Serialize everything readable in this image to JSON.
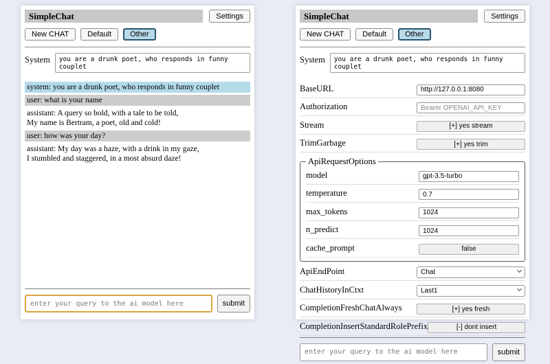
{
  "colors": {
    "page_background": "#e9ecf5",
    "panel_background": "#ffffff",
    "title_bar": "#c7c7c7",
    "system_message_bg": "#b4dbea",
    "user_message_bg": "#cdcdcd",
    "active_session_button_bg": "#b9d9e8",
    "active_session_button_border": "#26536e",
    "focused_query_border": "#d9a43c"
  },
  "header": {
    "title": "SimpleChat",
    "settings_label": "Settings",
    "session_buttons": [
      "New CHAT",
      "Default",
      "Other"
    ],
    "active_session": "Other",
    "system_label": "System",
    "system_prompt": "you are a drunk poet, who responds in funny couplet"
  },
  "chat": {
    "messages": [
      {
        "role": "system",
        "text": "system: you are a drunk poet, who responds in funny couplet"
      },
      {
        "role": "user",
        "text": "user: what is your name"
      },
      {
        "role": "assistant",
        "text": "assistant: A query so bold, with a tale to be told,\nMy name is Bertram, a poet, old and cold!"
      },
      {
        "role": "user",
        "text": "user: how was your day?"
      },
      {
        "role": "assistant",
        "text": "assistant: My day was a haze, with a drink in my gaze,\nI stumbled and staggered, in a most absurd daze!"
      }
    ]
  },
  "settings": {
    "rows_before": [
      {
        "label": "BaseURL",
        "control": "input",
        "value": "http://127.0.0.1:8080",
        "placeholder": ""
      },
      {
        "label": "Authorization",
        "control": "input",
        "value": "",
        "placeholder": "Bearer OPENAI_API_KEY"
      },
      {
        "label": "Stream",
        "control": "button",
        "value": "[+] yes stream"
      },
      {
        "label": "TrimGarbage",
        "control": "button",
        "value": "[+] yes trim"
      }
    ],
    "fieldset": {
      "legend": "ApiRequestOptions",
      "rows": [
        {
          "label": "model",
          "control": "input",
          "value": "gpt-3.5-turbo",
          "placeholder": ""
        },
        {
          "label": "temperature",
          "control": "input",
          "value": "0.7",
          "placeholder": ""
        },
        {
          "label": "max_tokens",
          "control": "input",
          "value": "1024",
          "placeholder": ""
        },
        {
          "label": "n_predict",
          "control": "input",
          "value": "1024",
          "placeholder": ""
        },
        {
          "label": "cache_prompt",
          "control": "button",
          "value": "false"
        }
      ]
    },
    "rows_after": [
      {
        "label": "ApiEndPoint",
        "control": "select",
        "value": "Chat"
      },
      {
        "label": "ChatHistoryInCtxt",
        "control": "select",
        "value": "Last1"
      },
      {
        "label": "CompletionFreshChatAlways",
        "control": "button",
        "value": "[+] yes fresh"
      },
      {
        "label": "CompletionInsertStandardRolePrefix",
        "control": "button",
        "value": "[-] dont insert"
      }
    ]
  },
  "footer": {
    "query_placeholder": "enter your query to the ai model here",
    "submit_label": "submit"
  }
}
